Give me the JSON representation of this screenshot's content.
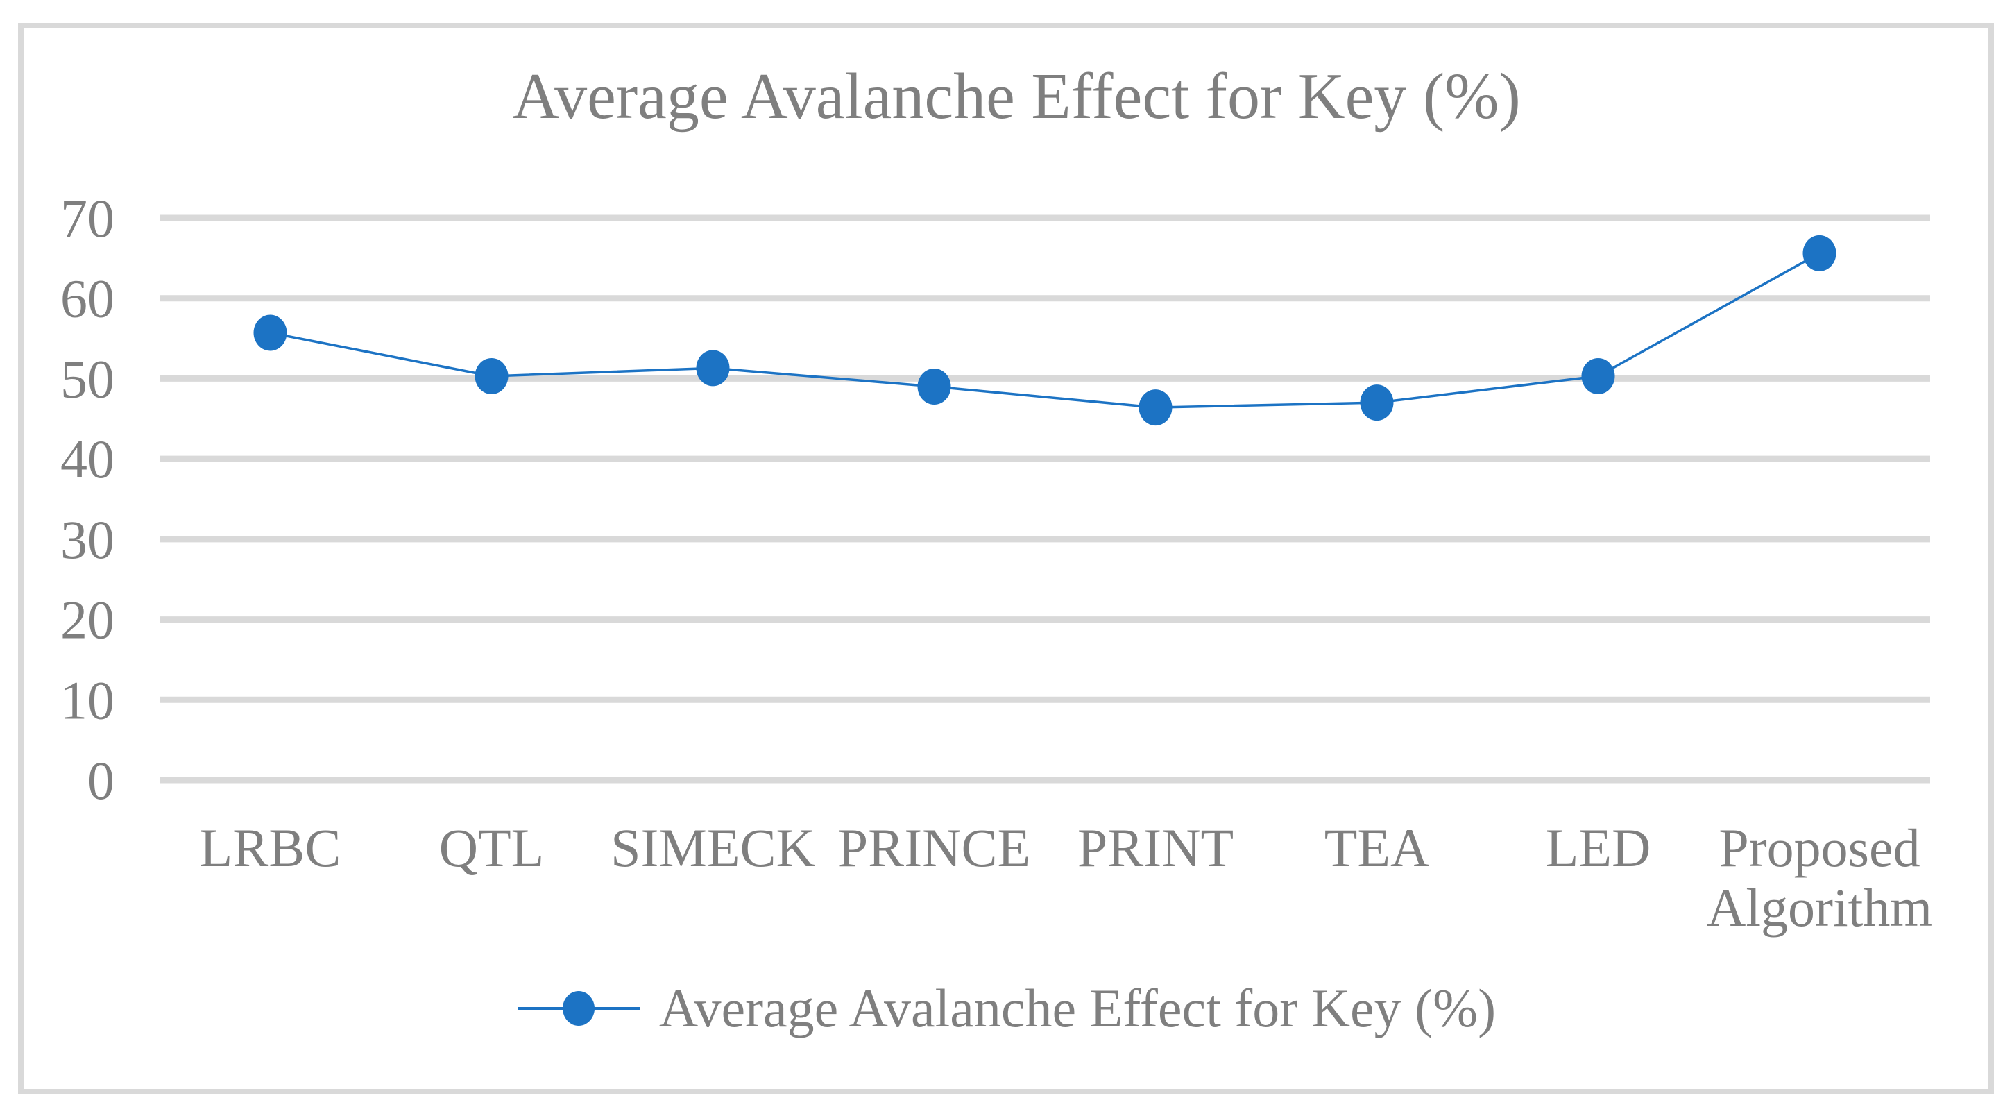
{
  "title": "Average Avalanche Effect for Key (%)",
  "legend": {
    "label": "Average Avalanche Effect for Key (%)"
  },
  "colors": {
    "series": "#1C73C4",
    "gridline": "#D9D9D9",
    "frame_border": "#D9D9D9",
    "text": "#7F7F7F",
    "background": "#FFFFFF"
  },
  "chart_data": {
    "type": "line",
    "title": "Average Avalanche Effect for Key (%)",
    "categories": [
      "LRBC",
      "QTL",
      "SIMECK",
      "PRINCE",
      "PRINT",
      "TEA",
      "LED",
      "Proposed\nAlgorithm"
    ],
    "series": [
      {
        "name": "Average Avalanche Effect for Key (%)",
        "values": [
          55.7,
          50.3,
          51.3,
          49.0,
          46.4,
          47.0,
          50.3,
          65.6
        ]
      }
    ],
    "xlabel": "",
    "ylabel": "",
    "ylim": [
      0,
      70
    ],
    "yticks": [
      0,
      10,
      20,
      30,
      40,
      50,
      60,
      70
    ],
    "grid": true,
    "grid_axis": "y",
    "legend_position": "bottom",
    "marker": "circle"
  }
}
